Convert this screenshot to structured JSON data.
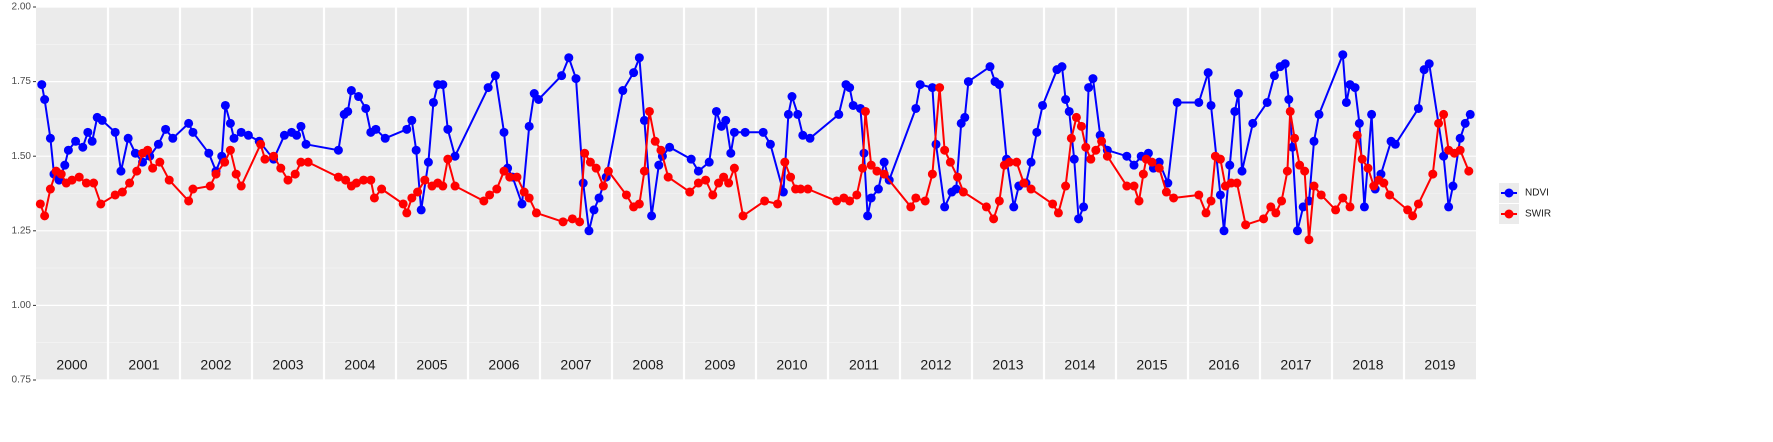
{
  "chart_data": {
    "type": "line",
    "years": [
      2000,
      2001,
      2002,
      2003,
      2004,
      2005,
      2006,
      2007,
      2008,
      2009,
      2010,
      2011,
      2012,
      2013,
      2014,
      2015,
      2016,
      2017,
      2018,
      2019
    ],
    "xlim": [
      2000,
      2020
    ],
    "ylim": [
      0.75,
      2.0
    ],
    "yticks": [
      {
        "value": 0.75,
        "label": "0.75"
      },
      {
        "value": 1.0,
        "label": "1.00"
      },
      {
        "value": 1.25,
        "label": "1.25"
      },
      {
        "value": 1.5,
        "label": "1.50"
      },
      {
        "value": 1.75,
        "label": "1.75"
      },
      {
        "value": 2.0,
        "label": "2.00"
      }
    ],
    "grid": true,
    "legend": "right",
    "series": [
      {
        "name": "NDVI",
        "color": "#0000ff",
        "x": [
          2000.08,
          2000.12,
          2000.2,
          2000.25,
          2000.32,
          2000.4,
          2000.45,
          2000.55,
          2000.65,
          2000.72,
          2000.78,
          2000.85,
          2000.92,
          2001.1,
          2001.18,
          2001.28,
          2001.38,
          2001.48,
          2001.58,
          2001.7,
          2001.8,
          2001.9,
          2002.12,
          2002.18,
          2002.4,
          2002.5,
          2002.58,
          2002.63,
          2002.7,
          2002.75,
          2002.85,
          2002.95,
          2003.1,
          2003.3,
          2003.45,
          2003.55,
          2003.62,
          2003.68,
          2003.75,
          2004.2,
          2004.28,
          2004.33,
          2004.38,
          2004.48,
          2004.58,
          2004.65,
          2004.72,
          2004.85,
          2005.15,
          2005.22,
          2005.28,
          2005.35,
          2005.45,
          2005.52,
          2005.58,
          2005.65,
          2005.72,
          2005.82,
          2006.28,
          2006.38,
          2006.5,
          2006.55,
          2006.62,
          2006.75,
          2006.85,
          2006.92,
          2006.98,
          2007.3,
          2007.4,
          2007.5,
          2007.6,
          2007.68,
          2007.75,
          2007.82,
          2007.92,
          2008.15,
          2008.3,
          2008.38,
          2008.45,
          2008.55,
          2008.65,
          2008.7,
          2008.8,
          2009.1,
          2009.2,
          2009.35,
          2009.45,
          2009.52,
          2009.58,
          2009.65,
          2009.7,
          2009.85,
          2010.1,
          2010.2,
          2010.38,
          2010.45,
          2010.5,
          2010.58,
          2010.65,
          2010.75,
          2011.15,
          2011.25,
          2011.3,
          2011.35,
          2011.45,
          2011.5,
          2011.55,
          2011.6,
          2011.7,
          2011.78,
          2011.85,
          2012.22,
          2012.28,
          2012.45,
          2012.5,
          2012.62,
          2012.72,
          2012.78,
          2012.85,
          2012.9,
          2012.95,
          2013.25,
          2013.32,
          2013.38,
          2013.48,
          2013.58,
          2013.65,
          2013.75,
          2013.82,
          2013.9,
          2013.98,
          2014.18,
          2014.25,
          2014.3,
          2014.35,
          2014.42,
          2014.48,
          2014.55,
          2014.62,
          2014.68,
          2014.78,
          2014.88,
          2015.15,
          2015.25,
          2015.35,
          2015.45,
          2015.52,
          2015.6,
          2015.72,
          2015.85,
          2016.15,
          2016.28,
          2016.32,
          2016.45,
          2016.5,
          2016.58,
          2016.65,
          2016.7,
          2016.75,
          2016.9,
          2017.1,
          2017.2,
          2017.28,
          2017.35,
          2017.4,
          2017.45,
          2017.52,
          2017.6,
          2017.68,
          2017.75,
          2017.82,
          2018.15,
          2018.2,
          2018.25,
          2018.32,
          2018.38,
          2018.45,
          2018.55,
          2018.6,
          2018.68,
          2018.82,
          2018.88,
          2019.2,
          2019.28,
          2019.35,
          2019.55,
          2019.62,
          2019.68,
          2019.78,
          2019.85,
          2019.92
        ],
        "values": [
          1.74,
          1.69,
          1.56,
          1.44,
          1.42,
          1.47,
          1.52,
          1.55,
          1.53,
          1.58,
          1.55,
          1.63,
          1.62,
          1.58,
          1.45,
          1.56,
          1.51,
          1.48,
          1.5,
          1.54,
          1.59,
          1.56,
          1.61,
          1.58,
          1.51,
          1.45,
          1.5,
          1.67,
          1.61,
          1.56,
          1.58,
          1.57,
          1.55,
          1.49,
          1.57,
          1.58,
          1.57,
          1.6,
          1.54,
          1.52,
          1.64,
          1.65,
          1.72,
          1.7,
          1.66,
          1.58,
          1.59,
          1.56,
          1.59,
          1.62,
          1.52,
          1.32,
          1.48,
          1.68,
          1.74,
          1.74,
          1.59,
          1.5,
          1.73,
          1.77,
          1.58,
          1.46,
          1.43,
          1.34,
          1.6,
          1.71,
          1.69,
          1.77,
          1.83,
          1.76,
          1.41,
          1.25,
          1.32,
          1.36,
          1.43,
          1.72,
          1.78,
          1.83,
          1.62,
          1.3,
          1.47,
          1.5,
          1.53,
          1.49,
          1.45,
          1.48,
          1.65,
          1.6,
          1.62,
          1.51,
          1.58,
          1.58,
          1.58,
          1.54,
          1.38,
          1.64,
          1.7,
          1.64,
          1.57,
          1.56,
          1.64,
          1.74,
          1.73,
          1.67,
          1.66,
          1.51,
          1.3,
          1.36,
          1.39,
          1.48,
          1.42,
          1.66,
          1.74,
          1.73,
          1.54,
          1.33,
          1.38,
          1.39,
          1.61,
          1.63,
          1.75,
          1.8,
          1.75,
          1.74,
          1.49,
          1.33,
          1.4,
          1.41,
          1.48,
          1.58,
          1.67,
          1.79,
          1.8,
          1.69,
          1.65,
          1.49,
          1.29,
          1.33,
          1.73,
          1.76,
          1.57,
          1.52,
          1.5,
          1.47,
          1.5,
          1.51,
          1.46,
          1.48,
          1.41,
          1.68,
          1.68,
          1.78,
          1.67,
          1.37,
          1.25,
          1.47,
          1.65,
          1.71,
          1.45,
          1.61,
          1.68,
          1.77,
          1.8,
          1.81,
          1.69,
          1.53,
          1.25,
          1.33,
          1.35,
          1.55,
          1.64,
          1.84,
          1.68,
          1.74,
          1.73,
          1.61,
          1.33,
          1.64,
          1.39,
          1.44,
          1.55,
          1.54,
          1.66,
          1.79,
          1.81,
          1.5,
          1.33,
          1.4,
          1.56,
          1.61,
          1.64
        ]
      },
      {
        "name": "SWIR",
        "color": "#ff0000",
        "x": [
          2000.06,
          2000.12,
          2000.2,
          2000.28,
          2000.35,
          2000.42,
          2000.5,
          2000.6,
          2000.7,
          2000.8,
          2000.9,
          2001.1,
          2001.2,
          2001.3,
          2001.4,
          2001.48,
          2001.55,
          2001.62,
          2001.72,
          2001.85,
          2002.12,
          2002.18,
          2002.42,
          2002.5,
          2002.62,
          2002.7,
          2002.78,
          2002.85,
          2003.12,
          2003.18,
          2003.3,
          2003.4,
          2003.5,
          2003.6,
          2003.68,
          2003.78,
          2004.2,
          2004.3,
          2004.38,
          2004.45,
          2004.55,
          2004.65,
          2004.7,
          2004.8,
          2005.1,
          2005.15,
          2005.22,
          2005.3,
          2005.4,
          2005.5,
          2005.58,
          2005.65,
          2005.72,
          2005.82,
          2006.22,
          2006.3,
          2006.4,
          2006.5,
          2006.58,
          2006.68,
          2006.78,
          2006.85,
          2006.95,
          2007.32,
          2007.45,
          2007.55,
          2007.62,
          2007.7,
          2007.78,
          2007.88,
          2007.95,
          2008.2,
          2008.3,
          2008.38,
          2008.45,
          2008.52,
          2008.6,
          2008.68,
          2008.78,
          2009.08,
          2009.2,
          2009.3,
          2009.4,
          2009.48,
          2009.55,
          2009.62,
          2009.7,
          2009.82,
          2010.12,
          2010.3,
          2010.4,
          2010.48,
          2010.55,
          2010.62,
          2010.72,
          2011.12,
          2011.22,
          2011.3,
          2011.4,
          2011.48,
          2011.52,
          2011.6,
          2011.68,
          2011.78,
          2012.15,
          2012.22,
          2012.35,
          2012.45,
          2012.55,
          2012.62,
          2012.7,
          2012.8,
          2012.88,
          2013.2,
          2013.3,
          2013.38,
          2013.45,
          2013.52,
          2013.62,
          2013.72,
          2013.82,
          2014.12,
          2014.2,
          2014.3,
          2014.38,
          2014.45,
          2014.52,
          2014.58,
          2014.65,
          2014.72,
          2014.8,
          2014.88,
          2015.15,
          2015.25,
          2015.32,
          2015.38,
          2015.42,
          2015.5,
          2015.6,
          2015.7,
          2015.8,
          2016.15,
          2016.25,
          2016.32,
          2016.38,
          2016.45,
          2016.52,
          2016.6,
          2016.68,
          2016.8,
          2017.05,
          2017.15,
          2017.22,
          2017.3,
          2017.38,
          2017.42,
          2017.48,
          2017.55,
          2017.62,
          2017.68,
          2017.75,
          2017.85,
          2018.05,
          2018.15,
          2018.25,
          2018.35,
          2018.42,
          2018.5,
          2018.58,
          2018.65,
          2018.72,
          2018.8,
          2019.05,
          2019.12,
          2019.2,
          2019.4,
          2019.48,
          2019.55,
          2019.62,
          2019.7,
          2019.78,
          2019.9
        ],
        "values": [
          1.34,
          1.3,
          1.39,
          1.45,
          1.44,
          1.41,
          1.42,
          1.43,
          1.41,
          1.41,
          1.34,
          1.37,
          1.38,
          1.41,
          1.45,
          1.51,
          1.52,
          1.46,
          1.48,
          1.42,
          1.35,
          1.39,
          1.4,
          1.44,
          1.48,
          1.52,
          1.44,
          1.4,
          1.54,
          1.49,
          1.5,
          1.46,
          1.42,
          1.44,
          1.48,
          1.48,
          1.43,
          1.42,
          1.4,
          1.41,
          1.42,
          1.42,
          1.36,
          1.39,
          1.34,
          1.31,
          1.36,
          1.38,
          1.42,
          1.4,
          1.41,
          1.4,
          1.49,
          1.4,
          1.35,
          1.37,
          1.39,
          1.45,
          1.43,
          1.43,
          1.38,
          1.36,
          1.31,
          1.28,
          1.29,
          1.28,
          1.51,
          1.48,
          1.46,
          1.4,
          1.45,
          1.37,
          1.33,
          1.34,
          1.45,
          1.65,
          1.55,
          1.52,
          1.43,
          1.38,
          1.41,
          1.42,
          1.37,
          1.41,
          1.43,
          1.41,
          1.46,
          1.3,
          1.35,
          1.34,
          1.48,
          1.43,
          1.39,
          1.39,
          1.39,
          1.35,
          1.36,
          1.35,
          1.37,
          1.46,
          1.65,
          1.47,
          1.45,
          1.44,
          1.33,
          1.36,
          1.35,
          1.44,
          1.73,
          1.52,
          1.48,
          1.43,
          1.38,
          1.33,
          1.29,
          1.35,
          1.47,
          1.48,
          1.48,
          1.41,
          1.39,
          1.34,
          1.31,
          1.4,
          1.56,
          1.63,
          1.6,
          1.53,
          1.49,
          1.52,
          1.55,
          1.5,
          1.4,
          1.4,
          1.35,
          1.44,
          1.49,
          1.48,
          1.46,
          1.38,
          1.36,
          1.37,
          1.31,
          1.35,
          1.5,
          1.49,
          1.4,
          1.41,
          1.41,
          1.27,
          1.29,
          1.33,
          1.31,
          1.35,
          1.45,
          1.65,
          1.56,
          1.47,
          1.45,
          1.22,
          1.4,
          1.37,
          1.32,
          1.36,
          1.33,
          1.57,
          1.49,
          1.46,
          1.4,
          1.42,
          1.41,
          1.37,
          1.32,
          1.3,
          1.34,
          1.44,
          1.61,
          1.64,
          1.52,
          1.51,
          1.52,
          1.45
        ]
      }
    ]
  }
}
